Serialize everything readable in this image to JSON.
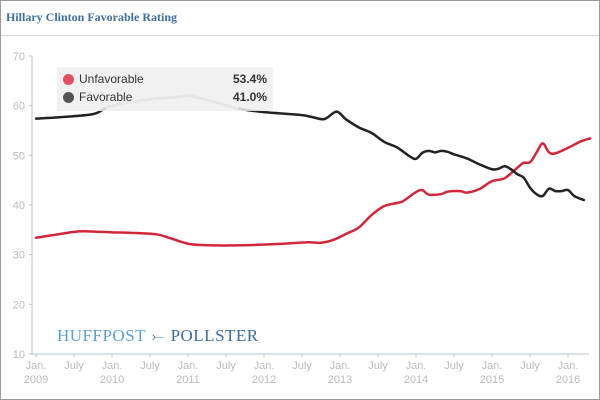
{
  "title": "Hillary Clinton Favorable Rating",
  "brand": {
    "part1": "HUFFPOST",
    "part2": "POLLSTER",
    "logo_icon": "swoosh-icon"
  },
  "legend": [
    {
      "name": "Unfavorable",
      "value": "53.4%",
      "color": "#d0283a"
    },
    {
      "name": "Favorable",
      "value": "41.0%",
      "color": "#222222"
    }
  ],
  "chart_data": {
    "type": "line",
    "title": "Hillary Clinton Favorable Rating",
    "xlabel": "",
    "ylabel": "",
    "ylim": [
      10,
      70
    ],
    "yticks": [
      10,
      20,
      30,
      40,
      50,
      60,
      70
    ],
    "xlim_months_since_jan_2009": [
      0,
      88
    ],
    "xticks": [
      {
        "m": 0,
        "line1": "Jan.",
        "line2": "2009"
      },
      {
        "m": 6,
        "line1": "July",
        "line2": ""
      },
      {
        "m": 12,
        "line1": "Jan.",
        "line2": "2010"
      },
      {
        "m": 18,
        "line1": "July",
        "line2": ""
      },
      {
        "m": 24,
        "line1": "Jan.",
        "line2": "2011"
      },
      {
        "m": 30,
        "line1": "July",
        "line2": ""
      },
      {
        "m": 36,
        "line1": "Jan.",
        "line2": "2012"
      },
      {
        "m": 42,
        "line1": "July",
        "line2": ""
      },
      {
        "m": 48,
        "line1": "Jan.",
        "line2": "2013"
      },
      {
        "m": 54,
        "line1": "July",
        "line2": ""
      },
      {
        "m": 60,
        "line1": "Jan.",
        "line2": "2014"
      },
      {
        "m": 66,
        "line1": "July",
        "line2": ""
      },
      {
        "m": 72,
        "line1": "Jan.",
        "line2": "2015"
      },
      {
        "m": 78,
        "line1": "July",
        "line2": ""
      },
      {
        "m": 84,
        "line1": "Jan.",
        "line2": "2016"
      }
    ],
    "grid": false,
    "legend_position": "top-left",
    "series": [
      {
        "name": "Unfavorable",
        "color": "#d0283a",
        "points": [
          [
            0,
            33.4
          ],
          [
            3,
            34.0
          ],
          [
            6,
            34.6
          ],
          [
            8,
            34.7
          ],
          [
            12,
            34.5
          ],
          [
            15,
            34.4
          ],
          [
            19,
            34.1
          ],
          [
            21,
            33.4
          ],
          [
            24,
            32.2
          ],
          [
            27,
            31.9
          ],
          [
            33,
            31.9
          ],
          [
            39,
            32.2
          ],
          [
            43,
            32.5
          ],
          [
            45,
            32.4
          ],
          [
            47,
            33.0
          ],
          [
            49,
            34.2
          ],
          [
            51,
            35.5
          ],
          [
            53,
            38.0
          ],
          [
            55,
            39.8
          ],
          [
            57,
            40.4
          ],
          [
            58,
            40.8
          ],
          [
            60,
            42.6
          ],
          [
            61,
            43.0
          ],
          [
            62,
            42.1
          ],
          [
            64,
            42.2
          ],
          [
            65,
            42.7
          ],
          [
            67,
            42.8
          ],
          [
            68,
            42.5
          ],
          [
            70,
            43.2
          ],
          [
            72,
            44.8
          ],
          [
            74,
            45.4
          ],
          [
            76,
            47.5
          ],
          [
            77,
            48.5
          ],
          [
            78,
            48.6
          ],
          [
            79,
            50.5
          ],
          [
            80,
            52.4
          ],
          [
            81,
            50.6
          ],
          [
            82,
            50.4
          ],
          [
            84,
            51.5
          ],
          [
            86,
            52.8
          ],
          [
            87.5,
            53.4
          ]
        ]
      },
      {
        "name": "Favorable",
        "color": "#222222",
        "points": [
          [
            0,
            57.4
          ],
          [
            4,
            57.7
          ],
          [
            9,
            58.3
          ],
          [
            11,
            59.5
          ],
          [
            14,
            60.5
          ],
          [
            18,
            61.3
          ],
          [
            22,
            61.7
          ],
          [
            24,
            62.0
          ],
          [
            25,
            61.8
          ],
          [
            28,
            60.8
          ],
          [
            32,
            59.4
          ],
          [
            36,
            58.7
          ],
          [
            42,
            58.1
          ],
          [
            45,
            57.3
          ],
          [
            46,
            57.6
          ],
          [
            47.5,
            58.8
          ],
          [
            49,
            57.2
          ],
          [
            51,
            55.6
          ],
          [
            53,
            54.5
          ],
          [
            55,
            52.7
          ],
          [
            57,
            51.6
          ],
          [
            59,
            49.8
          ],
          [
            60,
            49.3
          ],
          [
            61,
            50.5
          ],
          [
            62,
            50.9
          ],
          [
            63,
            50.6
          ],
          [
            64,
            50.9
          ],
          [
            65,
            50.7
          ],
          [
            66,
            50.2
          ],
          [
            68,
            49.4
          ],
          [
            70,
            48.2
          ],
          [
            72,
            47.2
          ],
          [
            73,
            47.3
          ],
          [
            74,
            47.8
          ],
          [
            75,
            47.2
          ],
          [
            76,
            46.2
          ],
          [
            77,
            45.5
          ],
          [
            78,
            43.5
          ],
          [
            79,
            42.2
          ],
          [
            80,
            41.8
          ],
          [
            81,
            43.3
          ],
          [
            82,
            42.8
          ],
          [
            83,
            42.8
          ],
          [
            84,
            43.0
          ],
          [
            85,
            41.8
          ],
          [
            86.5,
            41.0
          ]
        ]
      }
    ],
    "highlight": {
      "series": "Favorable",
      "range_months": [
        10,
        34
      ],
      "color": "#b3b3b3",
      "note": "segment behind legend drawn in gray"
    }
  }
}
